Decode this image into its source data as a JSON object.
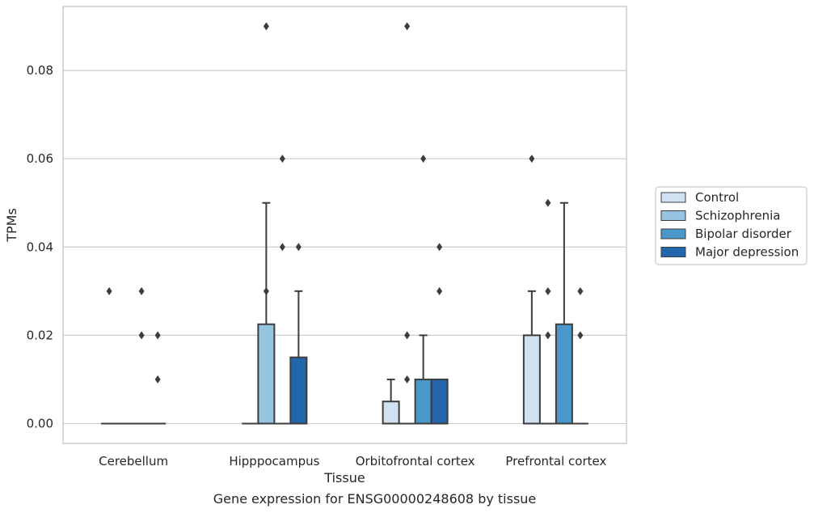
{
  "chart_data": {
    "type": "box",
    "xlabel": "Tissue",
    "ylabel": "TPMs",
    "caption": "Gene expression for ENSG00000248608 by tissue",
    "ylim": [
      -0.0045,
      0.0945
    ],
    "yticks": [
      0.0,
      0.02,
      0.04,
      0.06,
      0.08
    ],
    "ytick_labels": [
      "0.00",
      "0.02",
      "0.04",
      "0.06",
      "0.08"
    ],
    "grid": "horizontal",
    "legend_position": "right",
    "categories": [
      "Cerebellum",
      "Hipppocampus",
      "Orbitofrontal cortex",
      "Prefrontal cortex"
    ],
    "series": [
      {
        "name": "Control",
        "color": "#d0e1f2",
        "boxes": [
          {
            "q1": 0.0,
            "median": 0.0,
            "q3": 0.0,
            "whisker_low": 0.0,
            "whisker_high": 0.0,
            "outliers": [
              0.03
            ]
          },
          {
            "q1": 0.0,
            "median": 0.0,
            "q3": 0.0,
            "whisker_low": 0.0,
            "whisker_high": 0.0,
            "outliers": []
          },
          {
            "q1": 0.0,
            "median": 0.0,
            "q3": 0.005,
            "whisker_low": 0.0,
            "whisker_high": 0.01,
            "outliers": []
          },
          {
            "q1": 0.0,
            "median": 0.0,
            "q3": 0.02,
            "whisker_low": 0.0,
            "whisker_high": 0.03,
            "outliers": [
              0.06
            ]
          }
        ]
      },
      {
        "name": "Schizophrenia",
        "color": "#94c4df",
        "boxes": [
          {
            "q1": 0.0,
            "median": 0.0,
            "q3": 0.0,
            "whisker_low": 0.0,
            "whisker_high": 0.0,
            "outliers": []
          },
          {
            "q1": 0.0,
            "median": 0.0,
            "q3": 0.0225,
            "whisker_low": 0.0,
            "whisker_high": 0.05,
            "outliers": [
              0.03,
              0.09
            ]
          },
          {
            "q1": 0.0,
            "median": 0.0,
            "q3": 0.0,
            "whisker_low": 0.0,
            "whisker_high": 0.0,
            "outliers": [
              0.01,
              0.02,
              0.09
            ]
          },
          {
            "q1": 0.0,
            "median": 0.0,
            "q3": 0.0,
            "whisker_low": 0.0,
            "whisker_high": 0.0,
            "outliers": [
              0.02,
              0.03,
              0.05
            ]
          }
        ]
      },
      {
        "name": "Bipolar disorder",
        "color": "#4a98c9",
        "boxes": [
          {
            "q1": 0.0,
            "median": 0.0,
            "q3": 0.0,
            "whisker_low": 0.0,
            "whisker_high": 0.0,
            "outliers": [
              0.02,
              0.03
            ]
          },
          {
            "q1": 0.0,
            "median": 0.0,
            "q3": 0.0,
            "whisker_low": 0.0,
            "whisker_high": 0.0,
            "outliers": [
              0.04,
              0.06
            ]
          },
          {
            "q1": 0.0,
            "median": 0.0,
            "q3": 0.01,
            "whisker_low": 0.0,
            "whisker_high": 0.02,
            "outliers": [
              0.06
            ]
          },
          {
            "q1": 0.0,
            "median": 0.0,
            "q3": 0.0225,
            "whisker_low": 0.0,
            "whisker_high": 0.05,
            "outliers": []
          }
        ]
      },
      {
        "name": "Major depression",
        "color": "#2366ac",
        "boxes": [
          {
            "q1": 0.0,
            "median": 0.0,
            "q3": 0.0,
            "whisker_low": 0.0,
            "whisker_high": 0.0,
            "outliers": [
              0.01,
              0.02
            ]
          },
          {
            "q1": 0.0,
            "median": 0.0,
            "q3": 0.015,
            "whisker_low": 0.0,
            "whisker_high": 0.03,
            "outliers": [
              0.04
            ]
          },
          {
            "q1": 0.0,
            "median": 0.0,
            "q3": 0.01,
            "whisker_low": 0.0,
            "whisker_high": 0.01,
            "outliers": [
              0.03,
              0.04
            ]
          },
          {
            "q1": 0.0,
            "median": 0.0,
            "q3": 0.0,
            "whisker_low": 0.0,
            "whisker_high": 0.0,
            "outliers": [
              0.02,
              0.03
            ]
          }
        ]
      }
    ]
  },
  "colors": {
    "grid": "#cccccc",
    "frame": "#cccccc",
    "edge": "#3d3d3d",
    "text": "#262626"
  }
}
